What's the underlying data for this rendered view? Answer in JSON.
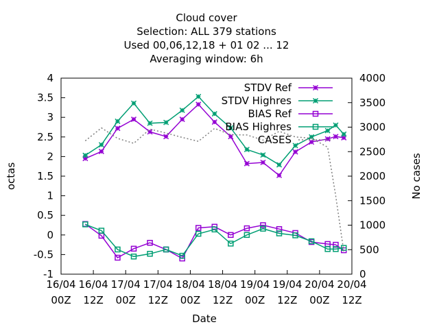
{
  "chart_data": {
    "type": "line",
    "title_lines": [
      "Cloud cover",
      "Selection: ALL    379 stations",
      "Used  00,06,12,18 + 01 02 ... 12",
      "Averaging window:  6h"
    ],
    "xlabel": "Date",
    "ylabel": "octas",
    "y2label": "No cases",
    "x_ticks": [
      {
        "line1": "16/04",
        "line2": "00Z"
      },
      {
        "line1": "16/04",
        "line2": "12Z"
      },
      {
        "line1": "17/04",
        "line2": "00Z"
      },
      {
        "line1": "17/04",
        "line2": "12Z"
      },
      {
        "line1": "18/04",
        "line2": "00Z"
      },
      {
        "line1": "18/04",
        "line2": "12Z"
      },
      {
        "line1": "19/04",
        "line2": "00Z"
      },
      {
        "line1": "19/04",
        "line2": "12Z"
      },
      {
        "line1": "20/04",
        "line2": "00Z"
      },
      {
        "line1": "20/04",
        "line2": "12Z"
      }
    ],
    "xlim_hours": [
      0,
      108
    ],
    "ylim": [
      -1,
      4
    ],
    "y_ticks": [
      "-1",
      "-0.5",
      "0",
      "0.5",
      "1",
      "1.5",
      "2",
      "2.5",
      "3",
      "3.5",
      "4"
    ],
    "y2lim": [
      0,
      4000
    ],
    "y2_ticks": [
      "0",
      "500",
      "1000",
      "1500",
      "2000",
      "2500",
      "3000",
      "3500",
      "4000"
    ],
    "legend_position": "top-right",
    "series": [
      {
        "name": "STDV Ref",
        "axis": "y1",
        "color": "#9400d3",
        "marker": "x",
        "hours": [
          9,
          15,
          21,
          27,
          33,
          39,
          45,
          51,
          57,
          63,
          69,
          75,
          81,
          87,
          93,
          99,
          102,
          105
        ],
        "values": [
          1.95,
          2.13,
          2.72,
          2.95,
          2.63,
          2.51,
          2.95,
          3.33,
          2.88,
          2.51,
          1.82,
          1.85,
          1.52,
          2.12,
          2.37,
          2.45,
          2.51,
          2.48
        ]
      },
      {
        "name": "STDV Highres",
        "axis": "y1",
        "color": "#009e73",
        "marker": "x",
        "hours": [
          9,
          15,
          21,
          27,
          33,
          39,
          45,
          51,
          57,
          63,
          69,
          75,
          81,
          87,
          93,
          99,
          102,
          105
        ],
        "values": [
          2.03,
          2.3,
          2.9,
          3.36,
          2.85,
          2.87,
          3.18,
          3.53,
          3.09,
          2.73,
          2.18,
          2.04,
          1.79,
          2.28,
          2.5,
          2.66,
          2.8,
          2.57
        ]
      },
      {
        "name": "BIAS Ref",
        "axis": "y1",
        "color": "#9400d3",
        "marker": "square",
        "hours": [
          9,
          15,
          21,
          27,
          33,
          39,
          45,
          51,
          57,
          63,
          69,
          75,
          81,
          87,
          93,
          99,
          102,
          105
        ],
        "values": [
          0.28,
          -0.02,
          -0.58,
          -0.35,
          -0.2,
          -0.37,
          -0.6,
          0.18,
          0.21,
          0.0,
          0.17,
          0.25,
          0.15,
          0.05,
          -0.18,
          -0.23,
          -0.25,
          -0.39
        ]
      },
      {
        "name": "BIAS Highres",
        "axis": "y1",
        "color": "#009e73",
        "marker": "square",
        "hours": [
          9,
          15,
          21,
          27,
          33,
          39,
          45,
          51,
          57,
          63,
          69,
          75,
          81,
          87,
          93,
          99,
          102,
          105
        ],
        "values": [
          0.27,
          0.11,
          -0.37,
          -0.55,
          -0.48,
          -0.37,
          -0.53,
          0.03,
          0.14,
          -0.22,
          0.0,
          0.16,
          0.04,
          -0.01,
          -0.16,
          -0.36,
          -0.36,
          -0.33
        ]
      },
      {
        "name": "CASES",
        "axis": "y2",
        "color": "#7f7f7f",
        "marker": "dotted",
        "hours": [
          9,
          15,
          21,
          27,
          33,
          39,
          45,
          51,
          57,
          63,
          69,
          75,
          81,
          87,
          93,
          99,
          102,
          105
        ],
        "values": [
          2720,
          2985,
          2770,
          2670,
          2960,
          2880,
          2790,
          2710,
          2975,
          2845,
          2840,
          2735,
          2915,
          2800,
          2775,
          2590,
          1600,
          460
        ]
      }
    ]
  }
}
